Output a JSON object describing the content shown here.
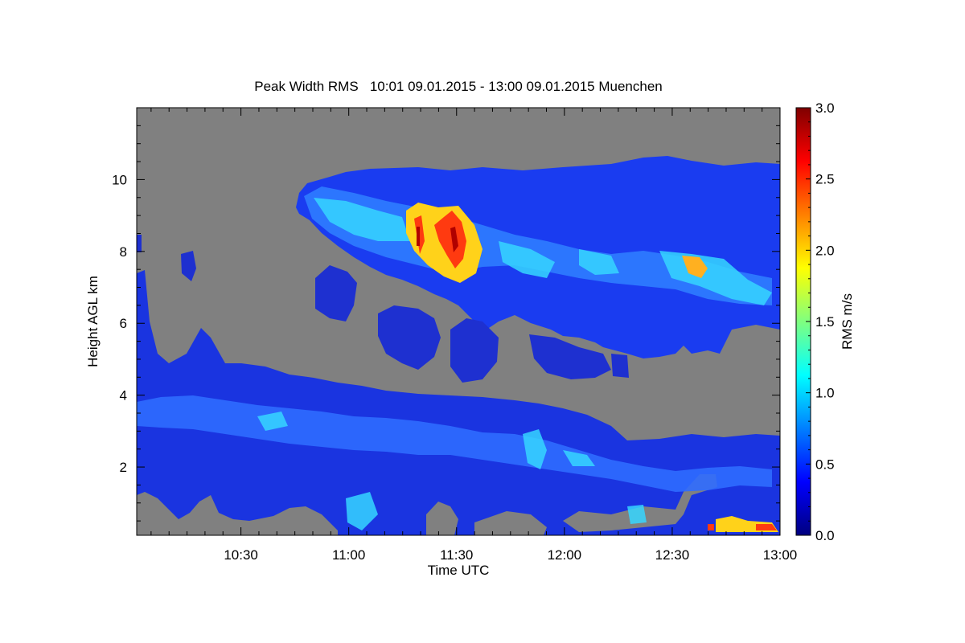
{
  "chart_data": {
    "type": "heatmap",
    "title": "Peak Width RMS   10:01 09.01.2015 - 13:00 09.01.2015 Muenchen",
    "xlabel": "Time UTC",
    "ylabel": "Height AGL km",
    "colorbar_label": "RMS m/s",
    "x_range": [
      "10:01",
      "13:00"
    ],
    "x_ticks": [
      "10:30",
      "11:00",
      "11:30",
      "12:00",
      "12:30",
      "13:00"
    ],
    "y_range": [
      0.1,
      12.0
    ],
    "y_ticks": [
      "2",
      "4",
      "6",
      "8",
      "10"
    ],
    "colorbar_range": [
      0.0,
      3.0
    ],
    "colorbar_ticks": [
      "0.0",
      "0.5",
      "1.0",
      "1.5",
      "2.0",
      "2.5",
      "3.0"
    ],
    "colormap": "jet",
    "missing_color": "#808080",
    "regions": [
      {
        "name": "upper cloud layer",
        "time_start": "10:45",
        "time_end": "13:00",
        "height_bottom_km": 5.8,
        "height_top_km": 10.6,
        "typical_rms": 0.4
      },
      {
        "name": "lower cloud layer",
        "time_start": "10:01",
        "time_end": "13:00",
        "height_bottom_km": 0.2,
        "height_top_km": 5.5,
        "typical_rms": 0.35
      },
      {
        "name": "turbulent core",
        "time_start": "11:20",
        "time_end": "11:35",
        "height_bottom_km": 7.2,
        "height_top_km": 9.3,
        "typical_rms": 2.2
      },
      {
        "name": "near-surface turbulence",
        "time_start": "12:35",
        "time_end": "13:00",
        "height_bottom_km": 0.1,
        "height_top_km": 0.8,
        "typical_rms": 1.8
      }
    ]
  }
}
